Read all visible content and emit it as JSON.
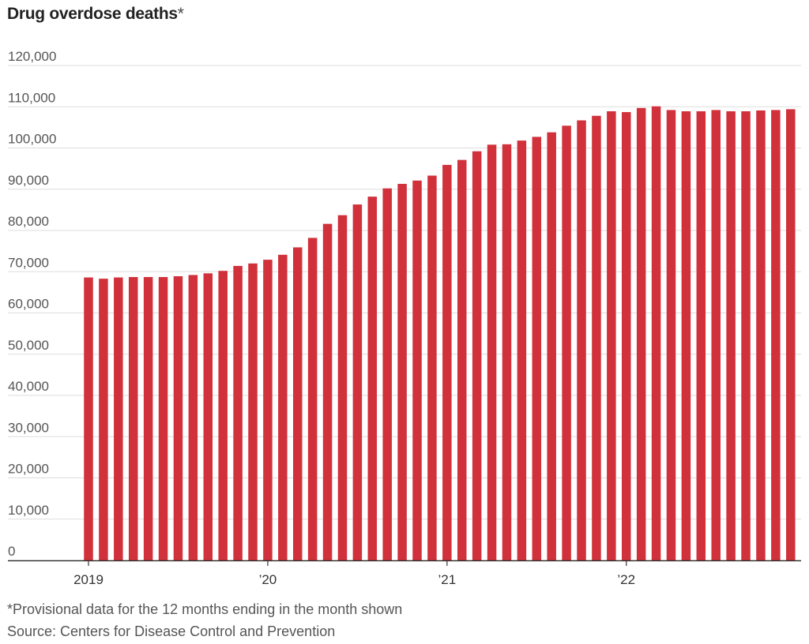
{
  "chart_data": {
    "type": "bar",
    "title": "Drug overdose deaths",
    "title_marker": "*",
    "xlabel": "",
    "ylabel": "",
    "ylim": [
      0,
      120000
    ],
    "yticks": [
      0,
      10000,
      20000,
      30000,
      40000,
      50000,
      60000,
      70000,
      80000,
      90000,
      100000,
      110000,
      120000
    ],
    "ytick_labels": [
      "0",
      "10,000",
      "20,000",
      "30,000",
      "40,000",
      "50,000",
      "60,000",
      "70,000",
      "80,000",
      "90,000",
      "100,000",
      "110,000",
      "120,000"
    ],
    "xtick_labels": [
      {
        "category": "2019-01",
        "label": "2019"
      },
      {
        "category": "2020-01",
        "label": "’20"
      },
      {
        "category": "2021-01",
        "label": "’21"
      },
      {
        "category": "2022-01",
        "label": "’22"
      }
    ],
    "grid": true,
    "bar_color": "#d0313b",
    "categories": [
      "2019-01",
      "2019-02",
      "2019-03",
      "2019-04",
      "2019-05",
      "2019-06",
      "2019-07",
      "2019-08",
      "2019-09",
      "2019-10",
      "2019-11",
      "2019-12",
      "2020-01",
      "2020-02",
      "2020-03",
      "2020-04",
      "2020-05",
      "2020-06",
      "2020-07",
      "2020-08",
      "2020-09",
      "2020-10",
      "2020-11",
      "2020-12",
      "2021-01",
      "2021-02",
      "2021-03",
      "2021-04",
      "2021-05",
      "2021-06",
      "2021-07",
      "2021-08",
      "2021-09",
      "2021-10",
      "2021-11",
      "2021-12",
      "2022-01",
      "2022-02",
      "2022-03",
      "2022-04",
      "2022-05",
      "2022-06",
      "2022-07",
      "2022-08",
      "2022-09",
      "2022-10",
      "2022-11",
      "2022-12"
    ],
    "values": [
      68600,
      68300,
      68600,
      68700,
      68700,
      68700,
      68900,
      69200,
      69600,
      70200,
      71400,
      72000,
      72900,
      74100,
      75900,
      78200,
      81600,
      83700,
      86300,
      88200,
      90200,
      91300,
      92100,
      93300,
      95900,
      97100,
      99200,
      100800,
      100900,
      101800,
      102700,
      103800,
      105400,
      106700,
      107800,
      108900,
      108700,
      109700,
      110100,
      109200,
      108900,
      108900,
      109200,
      108900,
      108900,
      109100,
      109200,
      109400
    ]
  },
  "footnotes": {
    "note": "*Provisional data for the 12 months ending in the month shown",
    "source": "Source: Centers for Disease Control and Prevention"
  }
}
